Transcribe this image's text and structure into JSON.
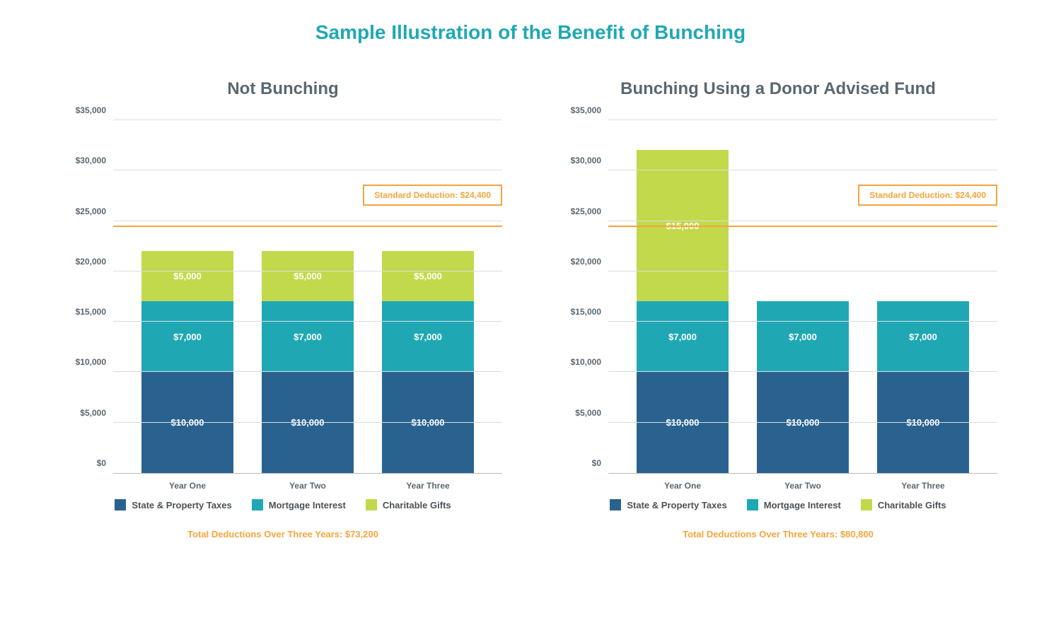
{
  "title": "Sample Illustration of the Benefit of Bunching",
  "title_color": "#1fa8b4",
  "colors": {
    "state_property": "#2a628f",
    "mortgage": "#1fa8b4",
    "charitable": "#c2d94c",
    "axis_text": "#5a6770",
    "gridline": "#d9dcde",
    "reference": "#f4a53c"
  },
  "y_axis": {
    "min": 0,
    "max": 35000,
    "step": 5000,
    "ticks": [
      "$0",
      "$5,000",
      "$10,000",
      "$15,000",
      "$20,000",
      "$25,000",
      "$30,000",
      "$35,000"
    ]
  },
  "reference": {
    "value": 24400,
    "label": "Standard Deduction: $24,400"
  },
  "legend": [
    {
      "key": "state_property",
      "label": "State & Property Taxes"
    },
    {
      "key": "mortgage",
      "label": "Mortgage Interest"
    },
    {
      "key": "charitable",
      "label": "Charitable Gifts"
    }
  ],
  "panels": [
    {
      "title": "Not Bunching",
      "categories": [
        "Year One",
        "Year Two",
        "Year Three"
      ],
      "series": [
        {
          "segments": [
            {
              "key": "state_property",
              "value": 10000,
              "label": "$10,000"
            },
            {
              "key": "mortgage",
              "value": 7000,
              "label": "$7,000"
            },
            {
              "key": "charitable",
              "value": 5000,
              "label": "$5,000"
            }
          ]
        },
        {
          "segments": [
            {
              "key": "state_property",
              "value": 10000,
              "label": "$10,000"
            },
            {
              "key": "mortgage",
              "value": 7000,
              "label": "$7,000"
            },
            {
              "key": "charitable",
              "value": 5000,
              "label": "$5,000"
            }
          ]
        },
        {
          "segments": [
            {
              "key": "state_property",
              "value": 10000,
              "label": "$10,000"
            },
            {
              "key": "mortgage",
              "value": 7000,
              "label": "$7,000"
            },
            {
              "key": "charitable",
              "value": 5000,
              "label": "$5,000"
            }
          ]
        }
      ],
      "footer": "Total Deductions Over Three Years: $73,200"
    },
    {
      "title": "Bunching Using a Donor Advised Fund",
      "categories": [
        "Year One",
        "Year Two",
        "Year Three"
      ],
      "series": [
        {
          "segments": [
            {
              "key": "state_property",
              "value": 10000,
              "label": "$10,000"
            },
            {
              "key": "mortgage",
              "value": 7000,
              "label": "$7,000"
            },
            {
              "key": "charitable",
              "value": 15000,
              "label": "$15,000"
            }
          ]
        },
        {
          "segments": [
            {
              "key": "state_property",
              "value": 10000,
              "label": "$10,000"
            },
            {
              "key": "mortgage",
              "value": 7000,
              "label": "$7,000"
            }
          ]
        },
        {
          "segments": [
            {
              "key": "state_property",
              "value": 10000,
              "label": "$10,000"
            },
            {
              "key": "mortgage",
              "value": 7000,
              "label": "$7,000"
            }
          ]
        }
      ],
      "footer": "Total Deductions Over Three Years: $80,800"
    }
  ]
}
